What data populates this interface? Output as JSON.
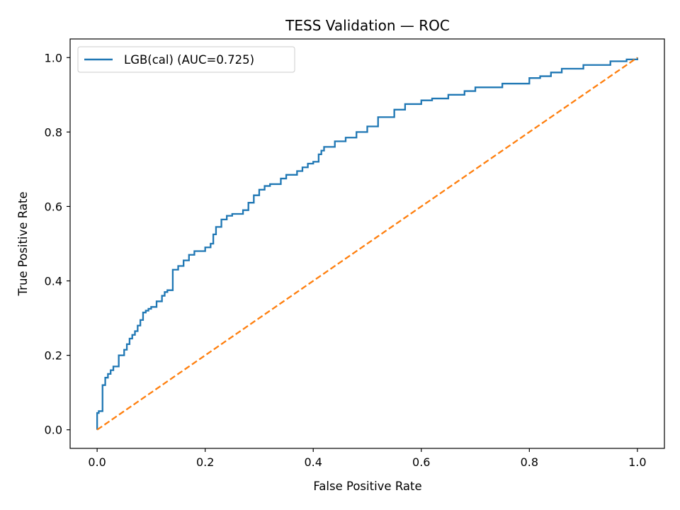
{
  "chart_data": {
    "type": "line",
    "title": "TESS Validation — ROC",
    "xlabel": "False Positive Rate",
    "ylabel": "True Positive Rate",
    "xlim": [
      -0.05,
      1.05
    ],
    "ylim": [
      -0.05,
      1.05
    ],
    "xticks": [
      0.0,
      0.2,
      0.4,
      0.6,
      0.8,
      1.0
    ],
    "yticks": [
      0.0,
      0.2,
      0.4,
      0.6,
      0.8,
      1.0
    ],
    "xtick_labels": [
      "0.0",
      "0.2",
      "0.4",
      "0.6",
      "0.8",
      "1.0"
    ],
    "ytick_labels": [
      "0.0",
      "0.2",
      "0.4",
      "0.6",
      "0.8",
      "1.0"
    ],
    "grid": false,
    "legend_placement": "upper-left",
    "series": [
      {
        "name": "LGB(cal) (AUC=0.725)",
        "color": "#1f77b4",
        "style": "step",
        "x": [
          0.0,
          0.0,
          0.003,
          0.003,
          0.01,
          0.01,
          0.015,
          0.02,
          0.025,
          0.03,
          0.04,
          0.05,
          0.055,
          0.06,
          0.065,
          0.07,
          0.075,
          0.08,
          0.085,
          0.09,
          0.095,
          0.1,
          0.11,
          0.12,
          0.125,
          0.13,
          0.14,
          0.14,
          0.15,
          0.16,
          0.17,
          0.18,
          0.2,
          0.21,
          0.215,
          0.22,
          0.23,
          0.24,
          0.25,
          0.27,
          0.28,
          0.29,
          0.3,
          0.31,
          0.32,
          0.34,
          0.35,
          0.37,
          0.38,
          0.39,
          0.4,
          0.41,
          0.415,
          0.42,
          0.44,
          0.46,
          0.48,
          0.5,
          0.52,
          0.55,
          0.57,
          0.6,
          0.62,
          0.65,
          0.68,
          0.7,
          0.75,
          0.8,
          0.82,
          0.84,
          0.86,
          0.9,
          0.95,
          0.98,
          1.0
        ],
        "y": [
          0.0,
          0.045,
          0.045,
          0.05,
          0.1,
          0.12,
          0.14,
          0.15,
          0.16,
          0.17,
          0.2,
          0.215,
          0.23,
          0.245,
          0.255,
          0.265,
          0.28,
          0.295,
          0.315,
          0.32,
          0.325,
          0.33,
          0.345,
          0.36,
          0.37,
          0.375,
          0.42,
          0.43,
          0.44,
          0.455,
          0.47,
          0.48,
          0.49,
          0.5,
          0.525,
          0.545,
          0.565,
          0.575,
          0.58,
          0.59,
          0.61,
          0.63,
          0.645,
          0.655,
          0.66,
          0.675,
          0.685,
          0.695,
          0.705,
          0.715,
          0.72,
          0.74,
          0.75,
          0.76,
          0.775,
          0.785,
          0.8,
          0.815,
          0.84,
          0.86,
          0.875,
          0.885,
          0.89,
          0.9,
          0.91,
          0.92,
          0.93,
          0.945,
          0.95,
          0.96,
          0.97,
          0.98,
          0.99,
          0.995,
          1.0
        ]
      },
      {
        "name": "",
        "color": "#ff7f0e",
        "style": "dashed",
        "x": [
          0.0,
          1.0
        ],
        "y": [
          0.0,
          1.0
        ]
      }
    ]
  }
}
